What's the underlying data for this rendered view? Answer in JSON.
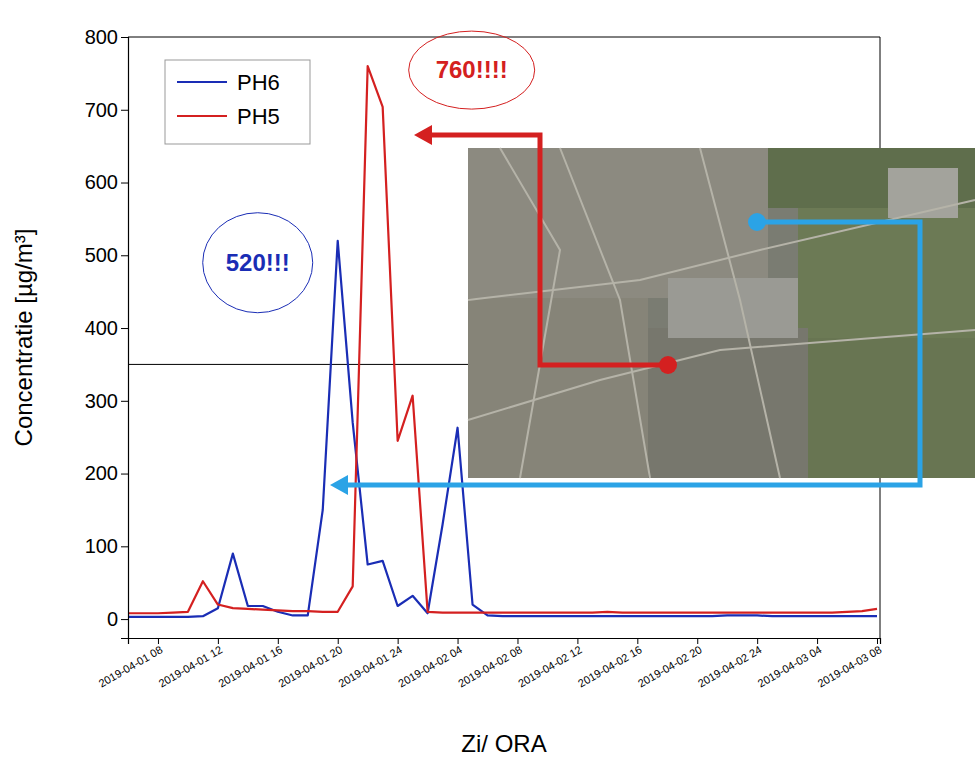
{
  "chart_data": {
    "type": "line",
    "x_label": "Zi/ ORA",
    "y_label": "Concentratie [µg/m³]",
    "x": [
      6,
      7,
      8,
      9,
      10,
      11,
      12,
      13,
      14,
      15,
      16,
      17,
      18,
      19,
      20,
      21,
      22,
      23,
      24,
      25,
      26,
      27,
      28,
      29,
      30,
      31,
      32,
      33,
      34,
      35,
      36,
      37,
      38,
      39,
      40,
      41,
      42,
      43,
      44,
      45,
      46,
      47,
      48,
      49,
      50,
      51,
      52,
      53,
      54,
      55,
      56
    ],
    "xlim": [
      6,
      56.2
    ],
    "xticks": [
      {
        "value": 8,
        "label": "2019-04-01 08"
      },
      {
        "value": 12,
        "label": "2019-04-01 12"
      },
      {
        "value": 16,
        "label": "2019-04-01 16"
      },
      {
        "value": 20,
        "label": "2019-04-01 20"
      },
      {
        "value": 24,
        "label": "2019-04-01 24"
      },
      {
        "value": 28,
        "label": "2019-04-02 04"
      },
      {
        "value": 32,
        "label": "2019-04-02 08"
      },
      {
        "value": 36,
        "label": "2019-04-02 12"
      },
      {
        "value": 40,
        "label": "2019-04-02 16"
      },
      {
        "value": 44,
        "label": "2019-04-02 20"
      },
      {
        "value": 48,
        "label": "2019-04-02 24"
      },
      {
        "value": 52,
        "label": "2019-04-03 04"
      },
      {
        "value": 56,
        "label": "2019-04-03 08"
      }
    ],
    "ylim": [
      -26,
      800
    ],
    "yticks": [
      0,
      100,
      200,
      300,
      400,
      500,
      600,
      700,
      800
    ],
    "grid": false,
    "legend": "top-left",
    "series": [
      {
        "name": "PH6",
        "color": "#1a2db5",
        "values": [
          3,
          3,
          3,
          3,
          3,
          4,
          15,
          90,
          18,
          18,
          10,
          5,
          5,
          150,
          520,
          270,
          75,
          80,
          18,
          32,
          8,
          130,
          263,
          20,
          5,
          4,
          4,
          4,
          4,
          4,
          4,
          4,
          4,
          4,
          4,
          4,
          4,
          4,
          4,
          4,
          5,
          5,
          5,
          4,
          4,
          4,
          4,
          4,
          4,
          4,
          4
        ]
      },
      {
        "name": "PH5",
        "color": "#d42020",
        "values": [
          8,
          8,
          8,
          9,
          10,
          52,
          20,
          15,
          14,
          13,
          12,
          11,
          11,
          10,
          10,
          45,
          760,
          704,
          245,
          307,
          10,
          9,
          9,
          9,
          9,
          9,
          9,
          9,
          9,
          9,
          9,
          9,
          10,
          9,
          9,
          9,
          9,
          9,
          9,
          9,
          9,
          9,
          9,
          9,
          9,
          9,
          9,
          9,
          10,
          11,
          14
        ]
      }
    ],
    "reference_line": 350,
    "annotations": [
      {
        "text": "520!!!",
        "x": 20,
        "y": 520,
        "color": "#1a2db5"
      },
      {
        "text": "760!!!!",
        "x": 22,
        "y": 760,
        "color": "#d42020"
      }
    ]
  }
}
